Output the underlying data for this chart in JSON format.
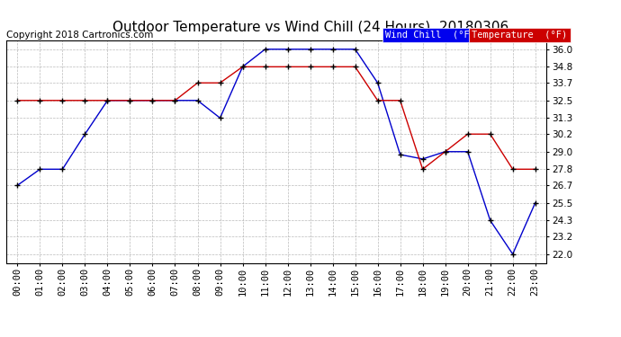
{
  "title": "Outdoor Temperature vs Wind Chill (24 Hours)  20180306",
  "copyright": "Copyright 2018 Cartronics.com",
  "background_color": "#ffffff",
  "plot_bg_color": "#ffffff",
  "grid_color": "#aaaaaa",
  "x_labels": [
    "00:00",
    "01:00",
    "02:00",
    "03:00",
    "04:00",
    "05:00",
    "06:00",
    "07:00",
    "08:00",
    "09:00",
    "10:00",
    "11:00",
    "12:00",
    "13:00",
    "14:00",
    "15:00",
    "16:00",
    "17:00",
    "18:00",
    "19:00",
    "20:00",
    "21:00",
    "22:00",
    "23:00"
  ],
  "y_ticks": [
    22.0,
    23.2,
    24.3,
    25.5,
    26.7,
    27.8,
    29.0,
    30.2,
    31.3,
    32.5,
    33.7,
    34.8,
    36.0
  ],
  "ylim": [
    21.4,
    36.6
  ],
  "wind_chill": [
    26.7,
    27.8,
    27.8,
    30.2,
    32.5,
    32.5,
    32.5,
    32.5,
    32.5,
    31.3,
    34.8,
    36.0,
    36.0,
    36.0,
    36.0,
    36.0,
    33.7,
    28.8,
    28.5,
    29.0,
    29.0,
    24.3,
    22.0,
    25.5
  ],
  "temperature": [
    32.5,
    32.5,
    32.5,
    32.5,
    32.5,
    32.5,
    32.5,
    32.5,
    33.7,
    33.7,
    34.8,
    34.8,
    34.8,
    34.8,
    34.8,
    34.8,
    32.5,
    32.5,
    27.8,
    29.0,
    30.2,
    30.2,
    27.8,
    27.8
  ],
  "wind_chill_color": "#0000cc",
  "temperature_color": "#cc0000",
  "legend_wc_bg": "#0000ee",
  "legend_temp_bg": "#cc0000",
  "title_fontsize": 11,
  "tick_fontsize": 7.5,
  "copyright_fontsize": 7.5
}
